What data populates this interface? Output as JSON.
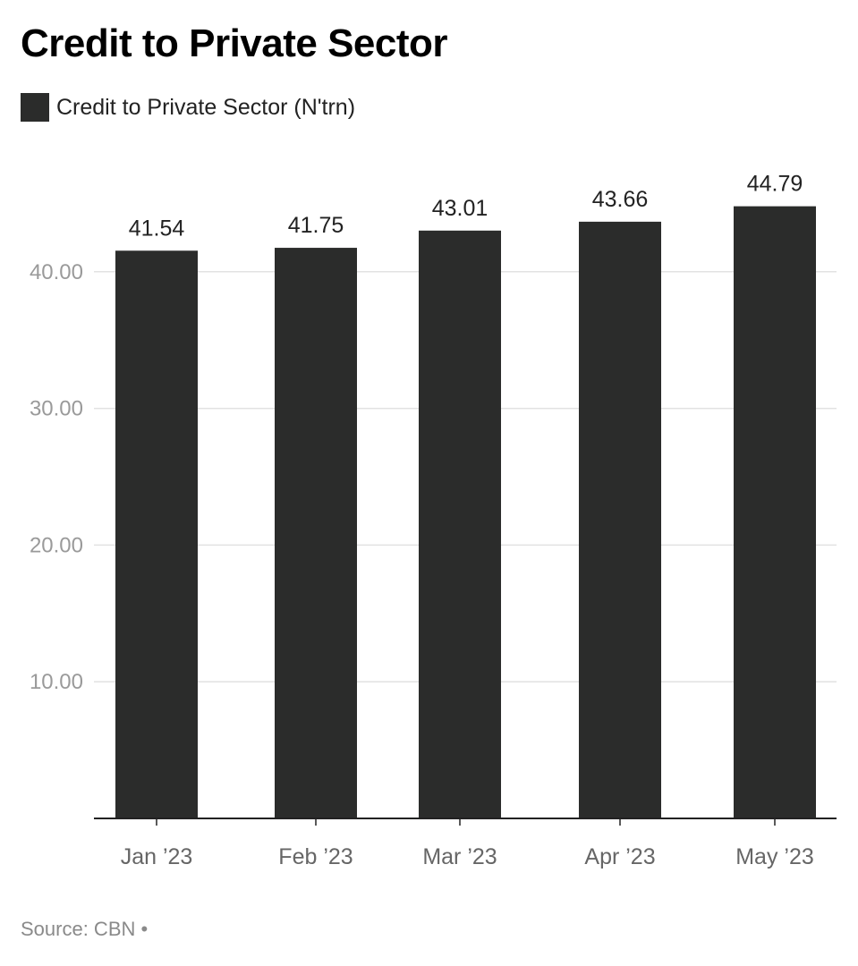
{
  "chart_data": {
    "type": "bar",
    "title": "Credit to Private Sector",
    "legend": [
      {
        "label": "Credit to Private Sector (N'trn)",
        "color": "#2b2c2b"
      }
    ],
    "categories": [
      "Jan ’23",
      "Feb ’23",
      "Mar ’23",
      "Apr ’23",
      "May ’23"
    ],
    "series": [
      {
        "name": "Credit to Private Sector (N'trn)",
        "values": [
          41.54,
          41.75,
          43.01,
          43.66,
          44.79
        ],
        "value_labels": [
          "41.54",
          "41.75",
          "43.01",
          "43.66",
          "44.79"
        ],
        "color": "#2b2c2b"
      }
    ],
    "yticks": [
      {
        "value": 10,
        "label": "10.00"
      },
      {
        "value": 20,
        "label": "20.00"
      },
      {
        "value": 30,
        "label": "30.00"
      },
      {
        "value": 40,
        "label": "40.00"
      }
    ],
    "ylim": [
      0,
      47
    ],
    "grid": true,
    "legend_position": "top-left",
    "colors": {
      "bar": "#2b2c2b",
      "grid": "#e2e2e2",
      "axis": "#222222",
      "tick_label": "#9a9a9a",
      "category_label": "#666666",
      "value_label": "#222222"
    }
  },
  "source": {
    "text": "Source: CBN •"
  }
}
